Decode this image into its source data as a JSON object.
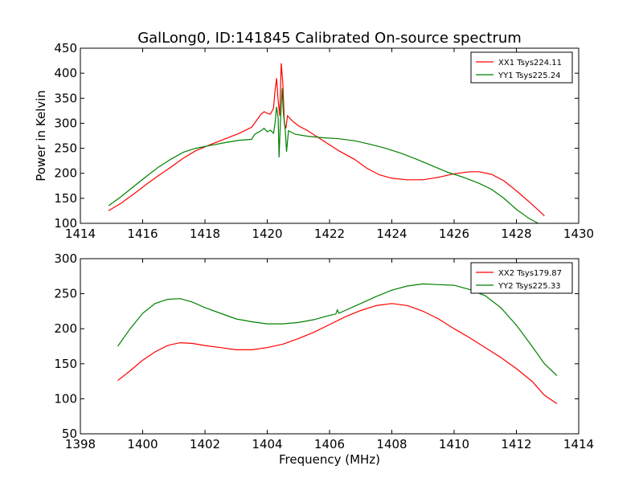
{
  "chart_data": {
    "title": "GalLong0, ID:141845 Calibrated On-source spectrum",
    "ylabel": "Power in Kelvin",
    "xlabel": "Frequency (MHz)",
    "panels": [
      {
        "type": "line",
        "xlim": [
          1414,
          1430
        ],
        "ylim": [
          100,
          450
        ],
        "xticks": [
          1414,
          1416,
          1418,
          1420,
          1422,
          1424,
          1426,
          1428,
          1430
        ],
        "yticks": [
          100,
          150,
          200,
          250,
          300,
          350,
          400,
          450
        ],
        "legend_position": "top-right",
        "series": [
          {
            "name": "XX1 Tsys224.11",
            "color": "#ff0000",
            "points": [
              [
                1414.9,
                125
              ],
              [
                1415.3,
                140
              ],
              [
                1415.7,
                158
              ],
              [
                1416.1,
                177
              ],
              [
                1416.5,
                195
              ],
              [
                1416.9,
                212
              ],
              [
                1417.3,
                230
              ],
              [
                1417.7,
                245
              ],
              [
                1418.2,
                258
              ],
              [
                1418.7,
                270
              ],
              [
                1419.1,
                280
              ],
              [
                1419.5,
                292
              ],
              [
                1419.8,
                318
              ],
              [
                1419.9,
                323
              ],
              [
                1420.0,
                320
              ],
              [
                1420.1,
                318
              ],
              [
                1420.2,
                330
              ],
              [
                1420.25,
                365
              ],
              [
                1420.3,
                390
              ],
              [
                1420.35,
                345
              ],
              [
                1420.4,
                315
              ],
              [
                1420.45,
                420
              ],
              [
                1420.5,
                380
              ],
              [
                1420.55,
                300
              ],
              [
                1420.6,
                290
              ],
              [
                1420.65,
                315
              ],
              [
                1420.8,
                305
              ],
              [
                1421.0,
                295
              ],
              [
                1421.3,
                285
              ],
              [
                1421.8,
                265
              ],
              [
                1422.3,
                245
              ],
              [
                1422.8,
                228
              ],
              [
                1423.2,
                210
              ],
              [
                1423.6,
                197
              ],
              [
                1424.0,
                190
              ],
              [
                1424.5,
                187
              ],
              [
                1425.0,
                187
              ],
              [
                1425.5,
                192
              ],
              [
                1426.0,
                199
              ],
              [
                1426.5,
                203
              ],
              [
                1426.8,
                203
              ],
              [
                1427.2,
                198
              ],
              [
                1427.6,
                185
              ],
              [
                1428.0,
                165
              ],
              [
                1428.5,
                138
              ],
              [
                1428.9,
                115
              ]
            ]
          },
          {
            "name": "YY1 Tsys225.24",
            "color": "#008000",
            "points": [
              [
                1414.9,
                135
              ],
              [
                1415.3,
                153
              ],
              [
                1415.7,
                173
              ],
              [
                1416.1,
                193
              ],
              [
                1416.5,
                212
              ],
              [
                1416.9,
                228
              ],
              [
                1417.3,
                242
              ],
              [
                1417.7,
                250
              ],
              [
                1418.2,
                256
              ],
              [
                1418.7,
                262
              ],
              [
                1419.1,
                266
              ],
              [
                1419.5,
                268
              ],
              [
                1419.6,
                278
              ],
              [
                1419.8,
                285
              ],
              [
                1419.9,
                290
              ],
              [
                1420.0,
                283
              ],
              [
                1420.1,
                286
              ],
              [
                1420.2,
                280
              ],
              [
                1420.25,
                300
              ],
              [
                1420.3,
                333
              ],
              [
                1420.35,
                310
              ],
              [
                1420.38,
                232
              ],
              [
                1420.42,
                300
              ],
              [
                1420.48,
                370
              ],
              [
                1420.52,
                320
              ],
              [
                1420.58,
                285
              ],
              [
                1420.62,
                243
              ],
              [
                1420.68,
                285
              ],
              [
                1420.9,
                278
              ],
              [
                1421.3,
                274
              ],
              [
                1421.8,
                271
              ],
              [
                1422.3,
                269
              ],
              [
                1422.8,
                265
              ],
              [
                1423.3,
                258
              ],
              [
                1423.8,
                250
              ],
              [
                1424.3,
                240
              ],
              [
                1424.8,
                228
              ],
              [
                1425.3,
                215
              ],
              [
                1425.8,
                202
              ],
              [
                1426.3,
                192
              ],
              [
                1426.8,
                180
              ],
              [
                1427.2,
                168
              ],
              [
                1427.6,
                150
              ],
              [
                1428.0,
                128
              ],
              [
                1428.4,
                110
              ],
              [
                1428.7,
                100
              ]
            ]
          }
        ]
      },
      {
        "type": "line",
        "xlim": [
          1398,
          1414
        ],
        "ylim": [
          50,
          300
        ],
        "xticks": [
          1398,
          1400,
          1402,
          1404,
          1406,
          1408,
          1410,
          1412,
          1414
        ],
        "yticks": [
          50,
          100,
          150,
          200,
          250,
          300
        ],
        "legend_position": "top-right",
        "series": [
          {
            "name": "XX2 Tsys179.87",
            "color": "#ff0000",
            "points": [
              [
                1399.2,
                126
              ],
              [
                1399.6,
                140
              ],
              [
                1400.0,
                155
              ],
              [
                1400.4,
                167
              ],
              [
                1400.8,
                176
              ],
              [
                1401.2,
                180
              ],
              [
                1401.6,
                179
              ],
              [
                1402.0,
                176
              ],
              [
                1402.5,
                173
              ],
              [
                1403.0,
                170
              ],
              [
                1403.5,
                170
              ],
              [
                1404.0,
                173
              ],
              [
                1404.5,
                178
              ],
              [
                1405.0,
                186
              ],
              [
                1405.5,
                195
              ],
              [
                1406.0,
                206
              ],
              [
                1406.5,
                217
              ],
              [
                1407.0,
                226
              ],
              [
                1407.5,
                233
              ],
              [
                1408.0,
                236
              ],
              [
                1408.5,
                233
              ],
              [
                1409.0,
                225
              ],
              [
                1409.5,
                214
              ],
              [
                1410.0,
                200
              ],
              [
                1410.5,
                187
              ],
              [
                1411.0,
                173
              ],
              [
                1411.5,
                159
              ],
              [
                1412.0,
                143
              ],
              [
                1412.5,
                125
              ],
              [
                1412.9,
                105
              ],
              [
                1413.3,
                93
              ]
            ]
          },
          {
            "name": "YY2 Tsys225.33",
            "color": "#008000",
            "points": [
              [
                1399.2,
                175
              ],
              [
                1399.6,
                200
              ],
              [
                1400.0,
                222
              ],
              [
                1400.4,
                236
              ],
              [
                1400.8,
                242
              ],
              [
                1401.2,
                243
              ],
              [
                1401.6,
                238
              ],
              [
                1402.0,
                230
              ],
              [
                1402.5,
                222
              ],
              [
                1403.0,
                214
              ],
              [
                1403.5,
                210
              ],
              [
                1404.0,
                207
              ],
              [
                1404.5,
                207
              ],
              [
                1405.0,
                209
              ],
              [
                1405.5,
                213
              ],
              [
                1406.0,
                219
              ],
              [
                1406.2,
                221
              ],
              [
                1406.25,
                227
              ],
              [
                1406.3,
                222
              ],
              [
                1406.5,
                226
              ],
              [
                1407.0,
                236
              ],
              [
                1407.5,
                246
              ],
              [
                1408.0,
                255
              ],
              [
                1408.5,
                261
              ],
              [
                1409.0,
                264
              ],
              [
                1409.5,
                263
              ],
              [
                1410.0,
                262
              ],
              [
                1410.5,
                256
              ],
              [
                1411.0,
                247
              ],
              [
                1411.5,
                230
              ],
              [
                1412.0,
                205
              ],
              [
                1412.5,
                175
              ],
              [
                1412.9,
                150
              ],
              [
                1413.3,
                133
              ]
            ]
          }
        ]
      }
    ]
  }
}
